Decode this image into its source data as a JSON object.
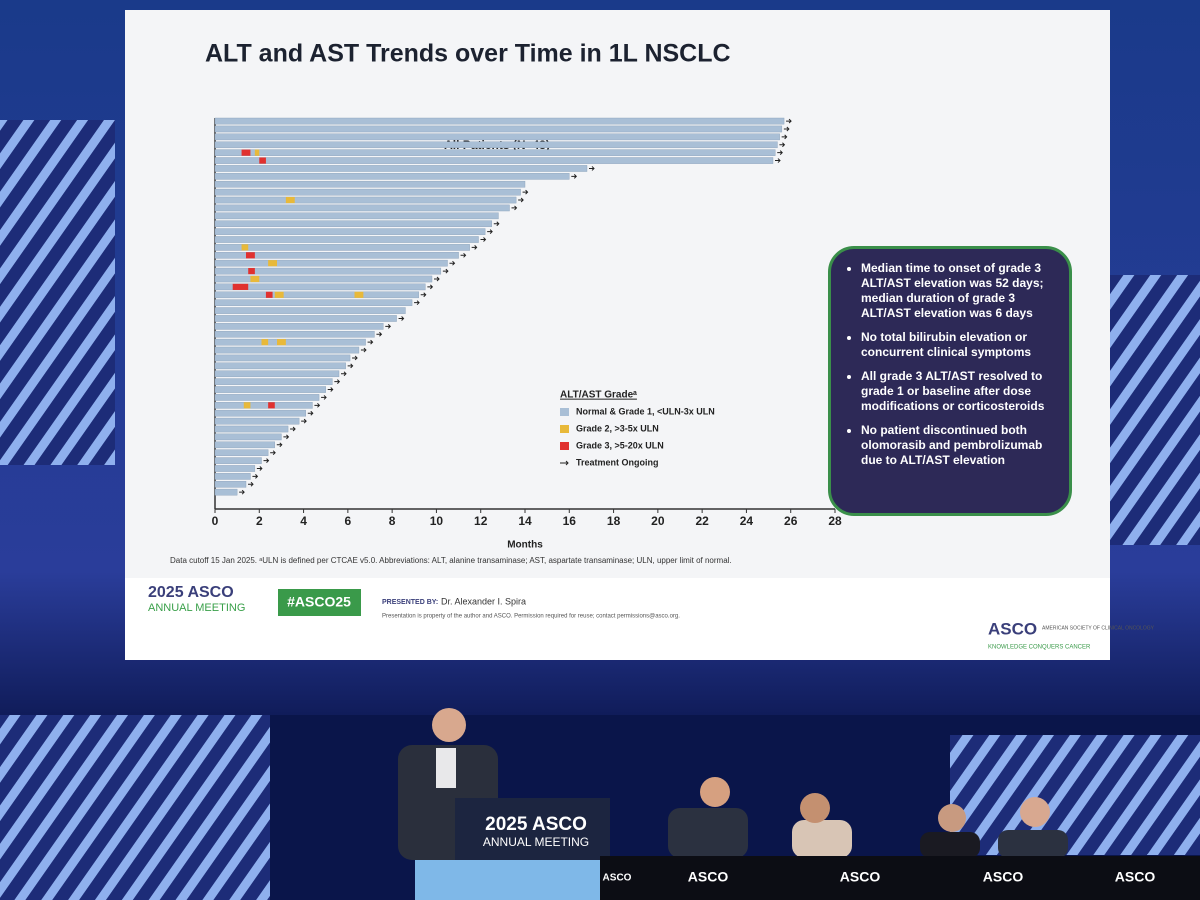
{
  "slide": {
    "title": "ALT and AST Trends over Time in 1L NSCLC",
    "bullets": [
      "Median time to onset of grade 3 ALT/AST elevation was 52 days; median duration of grade 3 ALT/AST elevation was 6 days",
      "No total bilirubin elevation or concurrent clinical symptoms",
      "All grade 3 ALT/AST resolved to grade 1 or baseline after dose modifications or corticosteroids",
      "No patient discontinued both olomorasib and pembrolizumab due to ALT/AST elevation"
    ],
    "footnote": "Data cutoff 15 Jan 2025. ᵃULN is defined per CTCAE v5.0. Abbreviations: ALT, alanine transaminase; AST, aspartate transaminase; ULN, upper limit of normal.",
    "meeting_year": "2025 ASCO",
    "meeting_name": "ANNUAL MEETING",
    "hashtag": "#ASCO25",
    "presented_by": "PRESENTED BY:",
    "presenter": "Dr. Alexander I. Spira",
    "property_note": "Presentation is property of the author and ASCO. Permission required for reuse; contact permissions@asco.org.",
    "asco_logo": "ASCO",
    "asco_society": "AMERICAN SOCIETY OF CLINICAL ONCOLOGY",
    "asco_tagline": "KNOWLEDGE CONQUERS CANCER"
  },
  "stage": {
    "podium_year": "2025 ASCO",
    "podium_name": "ANNUAL MEETING",
    "table_labels": [
      "ASCO",
      "ASCO",
      "ASCO",
      "ASCO",
      "ASCO"
    ]
  },
  "chart_data": {
    "type": "swimmer",
    "title": "All Patients (N=48)",
    "x_label": "Months",
    "legend_title": "ALT/AST Gradeᵃ",
    "xlim": [
      0,
      28
    ],
    "xticks": [
      0,
      2,
      4,
      6,
      8,
      10,
      12,
      14,
      16,
      18,
      20,
      22,
      24,
      26,
      28
    ],
    "series": [
      {
        "name": "Normal & Grade 1, <ULN-3x ULN",
        "color": "#a9bfd6",
        "values": [
          25.7,
          25.6,
          25.5,
          25.4,
          25.3,
          25.2,
          16.8,
          16.0,
          14.0,
          13.8,
          13.6,
          13.3,
          12.8,
          12.5,
          12.2,
          11.9,
          11.5,
          11.0,
          10.5,
          10.2,
          9.8,
          9.5,
          9.2,
          8.9,
          8.6,
          8.2,
          7.6,
          7.2,
          6.8,
          6.5,
          6.1,
          5.9,
          5.6,
          5.3,
          5.0,
          4.7,
          4.4,
          4.1,
          3.8,
          3.3,
          3.0,
          2.7,
          2.4,
          2.1,
          1.8,
          1.6,
          1.4,
          1.0
        ]
      },
      {
        "name": "Grade 2, >3-5x ULN",
        "color": "#e8b93a",
        "values": [
          null,
          null,
          null,
          null,
          [
            [
              1.8,
              2.0
            ]
          ],
          null,
          null,
          null,
          null,
          null,
          [
            [
              3.2,
              3.6
            ]
          ],
          null,
          null,
          null,
          null,
          null,
          [
            [
              1.2,
              1.5
            ]
          ],
          null,
          [
            [
              2.4,
              2.8
            ]
          ],
          null,
          [
            [
              1.6,
              2.0
            ]
          ],
          null,
          [
            [
              2.7,
              3.1
            ],
            [
              6.3,
              6.7
            ]
          ],
          null,
          null,
          null,
          null,
          null,
          [
            [
              2.1,
              2.4
            ],
            [
              2.8,
              3.2
            ]
          ],
          null,
          null,
          null,
          null,
          null,
          null,
          null,
          [
            [
              1.3,
              1.6
            ]
          ],
          null,
          null,
          null,
          null,
          null,
          null,
          null,
          null,
          null,
          null,
          null
        ]
      },
      {
        "name": "Grade 3, >5-20x ULN",
        "color": "#e0312f",
        "values": [
          null,
          null,
          null,
          null,
          [
            [
              1.2,
              1.6
            ]
          ],
          [
            [
              2.0,
              2.3
            ]
          ],
          null,
          null,
          null,
          null,
          null,
          null,
          null,
          null,
          null,
          null,
          null,
          [
            [
              1.4,
              1.8
            ]
          ],
          null,
          [
            [
              1.5,
              1.8
            ]
          ],
          null,
          [
            [
              0.8,
              1.5
            ]
          ],
          [
            [
              2.3,
              2.6
            ]
          ],
          null,
          null,
          null,
          null,
          null,
          null,
          null,
          null,
          null,
          null,
          null,
          null,
          null,
          [
            [
              2.4,
              2.7
            ]
          ],
          null,
          null,
          null,
          null,
          null,
          null,
          null,
          null,
          null,
          null,
          null
        ]
      },
      {
        "name": "Treatment Ongoing",
        "color": "#222222",
        "values": [
          true,
          true,
          true,
          true,
          true,
          true,
          true,
          true,
          false,
          true,
          true,
          true,
          false,
          true,
          true,
          true,
          true,
          true,
          true,
          true,
          true,
          true,
          true,
          true,
          false,
          true,
          true,
          true,
          true,
          true,
          true,
          true,
          true,
          true,
          true,
          true,
          true,
          true,
          true,
          true,
          true,
          true,
          true,
          true,
          true,
          true,
          true,
          true
        ]
      }
    ]
  }
}
